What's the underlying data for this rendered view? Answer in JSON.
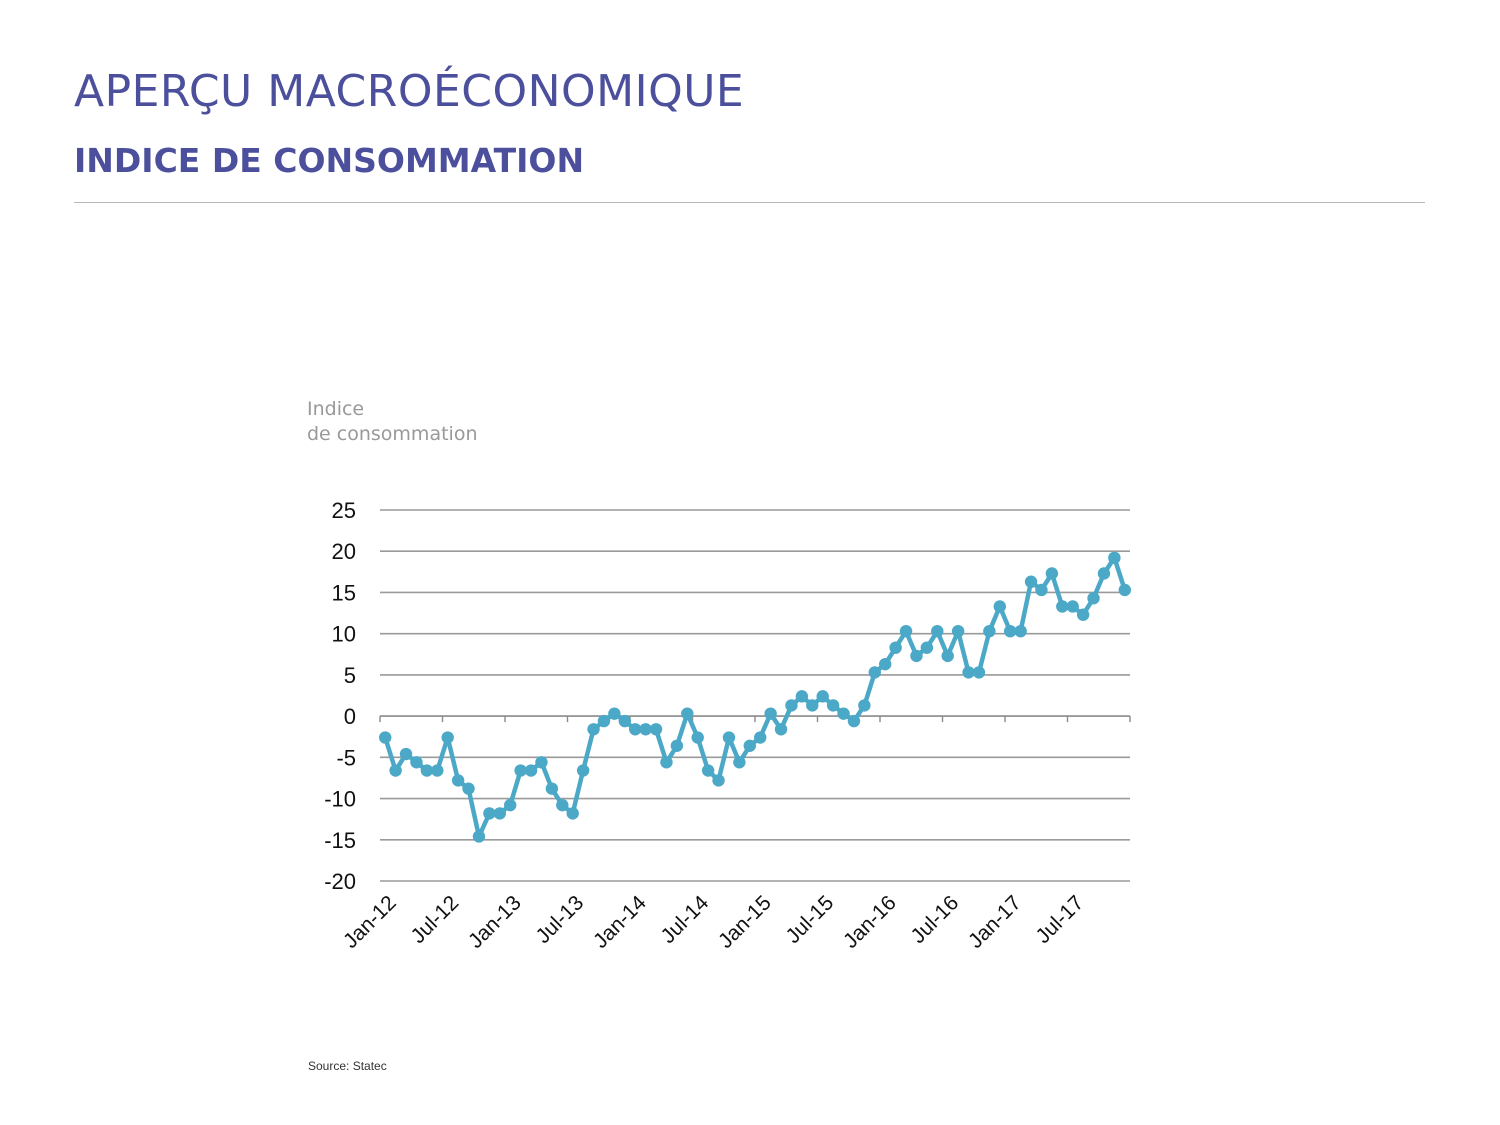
{
  "header": {
    "title": "APERÇU MACROÉCONOMIQUE",
    "subtitle": "INDICE DE CONSOMMATION"
  },
  "footer": {
    "source": "Source: Statec"
  },
  "colors": {
    "brand": "#4b4f9c",
    "series": "#4ba8c7",
    "grid": "#9a9a9a"
  },
  "chart_data": {
    "type": "line",
    "title": "",
    "ylabel_lines": [
      "Indice",
      "de consommation"
    ],
    "xlabel": "",
    "ylim": [
      -20,
      25
    ],
    "y_ticks": [
      25,
      20,
      15,
      10,
      5,
      0,
      -5,
      -10,
      -15,
      -20
    ],
    "x_tick_labels": [
      "Jan-12",
      "Jul-12",
      "Jan-13",
      "Jul-13",
      "Jan-14",
      "Jul-14",
      "Jan-15",
      "Jul-15",
      "Jan-16",
      "Jul-16",
      "Jan-17",
      "Jul-17"
    ],
    "grid": "horizontal",
    "legend": "none",
    "marker": "circle",
    "series": [
      {
        "name": "",
        "color": "#4ba8c7",
        "x": [
          "Jan-12",
          "Feb-12",
          "Mar-12",
          "Apr-12",
          "May-12",
          "Jun-12",
          "Jul-12",
          "Aug-12",
          "Sep-12",
          "Oct-12",
          "Nov-12",
          "Dec-12",
          "Jan-13",
          "Feb-13",
          "Mar-13",
          "Apr-13",
          "May-13",
          "Jun-13",
          "Jul-13",
          "Aug-13",
          "Sep-13",
          "Oct-13",
          "Nov-13",
          "Dec-13",
          "Jan-14",
          "Feb-14",
          "Mar-14",
          "Apr-14",
          "May-14",
          "Jun-14",
          "Jul-14",
          "Aug-14",
          "Sep-14",
          "Oct-14",
          "Nov-14",
          "Dec-14",
          "Jan-15",
          "Feb-15",
          "Mar-15",
          "Apr-15",
          "May-15",
          "Jun-15",
          "Jul-15",
          "Aug-15",
          "Sep-15",
          "Oct-15",
          "Nov-15",
          "Dec-15",
          "Jan-16",
          "Feb-16",
          "Mar-16",
          "Apr-16",
          "May-16",
          "Jun-16",
          "Jul-16",
          "Aug-16",
          "Sep-16",
          "Oct-16",
          "Nov-16",
          "Dec-16",
          "Jan-17",
          "Feb-17",
          "Mar-17",
          "Apr-17",
          "May-17",
          "Jun-17",
          "Jul-17",
          "Aug-17",
          "Sep-17",
          "Oct-17",
          "Nov-17",
          "Dec-17"
        ],
        "values": [
          -2.6,
          -6.6,
          -4.6,
          -5.6,
          -6.6,
          -6.6,
          -2.6,
          -7.8,
          -8.8,
          -14.6,
          -11.8,
          -11.8,
          -10.8,
          -6.6,
          -6.6,
          -5.6,
          -8.8,
          -10.8,
          -11.8,
          -6.6,
          -1.6,
          -0.6,
          0.3,
          -0.6,
          -1.6,
          -1.6,
          -1.6,
          -5.6,
          -3.6,
          0.3,
          -2.6,
          -6.6,
          -7.8,
          -2.6,
          -5.6,
          -3.6,
          -2.6,
          0.3,
          -1.6,
          1.3,
          2.4,
          1.3,
          2.4,
          1.3,
          0.3,
          -0.6,
          1.3,
          5.3,
          6.3,
          8.3,
          10.3,
          7.3,
          8.3,
          10.3,
          7.3,
          10.3,
          5.3,
          5.3,
          10.3,
          13.3,
          10.3,
          10.3,
          16.3,
          15.3,
          17.3,
          13.3,
          13.3,
          12.3,
          14.3,
          17.3,
          19.2,
          15.3
        ]
      }
    ]
  }
}
